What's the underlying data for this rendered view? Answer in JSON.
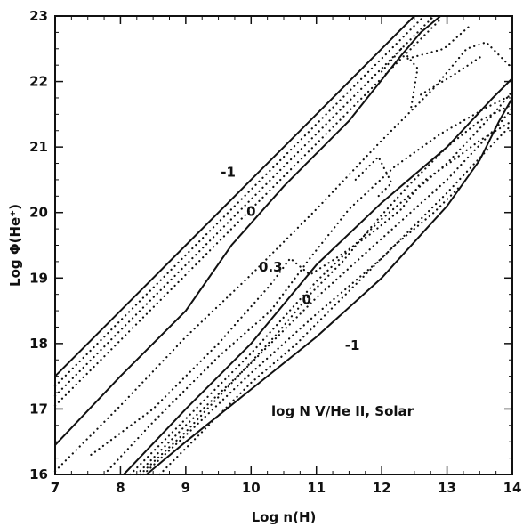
{
  "chart_data": {
    "type": "line",
    "title": "",
    "xlabel": "Log n(H)",
    "ylabel": "Log Φ(He⁺)",
    "xlim": [
      7,
      14
    ],
    "ylim": [
      16,
      23
    ],
    "grid": false,
    "xticks": [
      "7",
      "8",
      "9",
      "10",
      "11",
      "12",
      "13",
      "14"
    ],
    "yticks": [
      "16",
      "17",
      "18",
      "19",
      "20",
      "21",
      "22",
      "23"
    ],
    "annotation": "log N V/He II, Solar",
    "contour_labels": [
      {
        "text": "-1",
        "x": 9.65,
        "y": 20.55
      },
      {
        "text": "0",
        "x": 10.0,
        "y": 19.95
      },
      {
        "text": "0.3",
        "x": 10.3,
        "y": 19.1
      },
      {
        "text": "0",
        "x": 10.85,
        "y": 18.6
      },
      {
        "text": "-1",
        "x": 11.55,
        "y": 17.9
      }
    ],
    "series": [
      {
        "style": "solid",
        "points": [
          [
            7,
            17.5
          ],
          [
            8,
            18.5
          ],
          [
            9,
            19.5
          ],
          [
            10,
            20.5
          ],
          [
            11,
            21.5
          ],
          [
            12,
            22.5
          ],
          [
            12.5,
            23
          ]
        ]
      },
      {
        "style": "dotted",
        "points": [
          [
            7,
            17.35
          ],
          [
            8,
            18.35
          ],
          [
            9,
            19.35
          ],
          [
            10,
            20.35
          ],
          [
            11,
            21.35
          ],
          [
            12,
            22.35
          ],
          [
            12.65,
            23
          ]
        ]
      },
      {
        "style": "dotted",
        "points": [
          [
            7,
            17.2
          ],
          [
            8,
            18.2
          ],
          [
            9,
            19.2
          ],
          [
            10,
            20.2
          ],
          [
            11,
            21.2
          ],
          [
            12,
            22.2
          ],
          [
            12.8,
            23
          ]
        ]
      },
      {
        "style": "dotted",
        "points": [
          [
            7,
            17.05
          ],
          [
            8,
            18.05
          ],
          [
            9,
            19.05
          ],
          [
            10,
            20.05
          ],
          [
            11,
            21.05
          ],
          [
            12,
            22.05
          ],
          [
            12.9,
            22.95
          ]
        ]
      },
      {
        "style": "solid",
        "points": [
          [
            7,
            16.45
          ],
          [
            8,
            17.5
          ],
          [
            9,
            18.5
          ],
          [
            9.7,
            19.5
          ],
          [
            10.5,
            20.4
          ],
          [
            11.5,
            21.4
          ],
          [
            12.3,
            22.4
          ],
          [
            12.6,
            22.75
          ],
          [
            12.9,
            23
          ]
        ]
      },
      {
        "style": "dotted",
        "points": [
          [
            7,
            16.05
          ],
          [
            8,
            17.05
          ],
          [
            9,
            18.1
          ],
          [
            10,
            19.05
          ],
          [
            11,
            20.05
          ],
          [
            12,
            21.1
          ],
          [
            12.8,
            21.9
          ],
          [
            13.3,
            22.5
          ],
          [
            13.6,
            22.6
          ],
          [
            14,
            22.2
          ]
        ]
      },
      {
        "style": "dotted",
        "points": [
          [
            7.75,
            16
          ],
          [
            8.5,
            16.8
          ],
          [
            9.5,
            17.8
          ],
          [
            10.3,
            18.5
          ],
          [
            10.9,
            19.3
          ],
          [
            11.5,
            20.05
          ],
          [
            12.2,
            20.7
          ],
          [
            12.9,
            21.2
          ],
          [
            13.6,
            21.6
          ],
          [
            14,
            21.8
          ]
        ]
      },
      {
        "style": "dotted",
        "points": [
          [
            8.3,
            16
          ],
          [
            9,
            16.65
          ],
          [
            9.8,
            17.5
          ],
          [
            10.4,
            18.15
          ],
          [
            10.9,
            18.75
          ],
          [
            11.4,
            19.25
          ],
          [
            11.9,
            19.85
          ],
          [
            12.4,
            20.4
          ],
          [
            13,
            21.0
          ],
          [
            13.5,
            21.4
          ],
          [
            14,
            21.65
          ]
        ]
      },
      {
        "style": "dotted",
        "points": [
          [
            7.55,
            16.3
          ],
          [
            8.5,
            17.0
          ],
          [
            9.5,
            18.0
          ],
          [
            10.3,
            18.9
          ],
          [
            10.6,
            19.3
          ],
          [
            10.9,
            19.05
          ],
          [
            11.3,
            19.3
          ],
          [
            11.8,
            19.65
          ],
          [
            12.3,
            20.05
          ],
          [
            12.6,
            20.45
          ],
          [
            13.1,
            20.8
          ],
          [
            13.5,
            21.1
          ],
          [
            14,
            21.4
          ]
        ]
      },
      {
        "style": "dotted",
        "points": [
          [
            8.6,
            16.0
          ],
          [
            9.2,
            16.6
          ],
          [
            10,
            17.4
          ],
          [
            10.7,
            18.0
          ],
          [
            11.2,
            18.5
          ],
          [
            11.7,
            19.0
          ],
          [
            12.2,
            19.5
          ],
          [
            12.8,
            20.0
          ],
          [
            13.2,
            20.4
          ]
        ]
      },
      {
        "style": "dotted",
        "points": [
          [
            11.6,
            20.5
          ],
          [
            11.95,
            20.85
          ],
          [
            12.15,
            20.45
          ],
          [
            11.95,
            20.25
          ]
        ]
      },
      {
        "style": "dotted",
        "points": [
          [
            12.0,
            22.15
          ],
          [
            12.3,
            22.5
          ],
          [
            12.55,
            22.2
          ],
          [
            12.45,
            21.6
          ]
        ]
      },
      {
        "style": "dotted",
        "points": [
          [
            12.4,
            22.35
          ],
          [
            12.95,
            22.5
          ],
          [
            13.35,
            22.85
          ]
        ]
      },
      {
        "style": "dotted",
        "points": [
          [
            12.6,
            21.8
          ],
          [
            13.1,
            22.1
          ],
          [
            13.55,
            22.4
          ]
        ]
      },
      {
        "style": "solid",
        "points": [
          [
            8.05,
            16
          ],
          [
            9,
            17.0
          ],
          [
            10,
            18.0
          ],
          [
            11,
            19.2
          ],
          [
            12,
            20.15
          ],
          [
            13,
            21.0
          ],
          [
            13.7,
            21.75
          ],
          [
            14,
            22.05
          ]
        ]
      },
      {
        "style": "dotted",
        "points": [
          [
            8.15,
            16
          ],
          [
            9,
            16.85
          ],
          [
            10,
            17.85
          ],
          [
            11,
            18.95
          ],
          [
            12,
            19.9
          ],
          [
            13,
            20.75
          ],
          [
            13.75,
            21.55
          ],
          [
            14,
            21.85
          ]
        ]
      },
      {
        "style": "dotted",
        "points": [
          [
            8.25,
            16
          ],
          [
            9,
            16.75
          ],
          [
            10,
            17.7
          ],
          [
            11,
            18.7
          ],
          [
            12,
            19.6
          ],
          [
            13,
            20.5
          ],
          [
            13.8,
            21.35
          ],
          [
            14,
            21.6
          ]
        ]
      },
      {
        "style": "dotted",
        "points": [
          [
            8.35,
            16
          ],
          [
            9,
            16.6
          ],
          [
            10,
            17.55
          ],
          [
            11,
            18.45
          ],
          [
            12,
            19.3
          ],
          [
            13,
            20.3
          ],
          [
            13.8,
            21.15
          ],
          [
            14,
            21.35
          ]
        ]
      },
      {
        "style": "solid",
        "points": [
          [
            8.4,
            16
          ],
          [
            9,
            16.5
          ],
          [
            10,
            17.3
          ],
          [
            11,
            18.1
          ],
          [
            12,
            19.0
          ],
          [
            13,
            20.1
          ],
          [
            13.5,
            20.8
          ],
          [
            13.8,
            21.4
          ],
          [
            14,
            21.75
          ]
        ]
      }
    ]
  }
}
